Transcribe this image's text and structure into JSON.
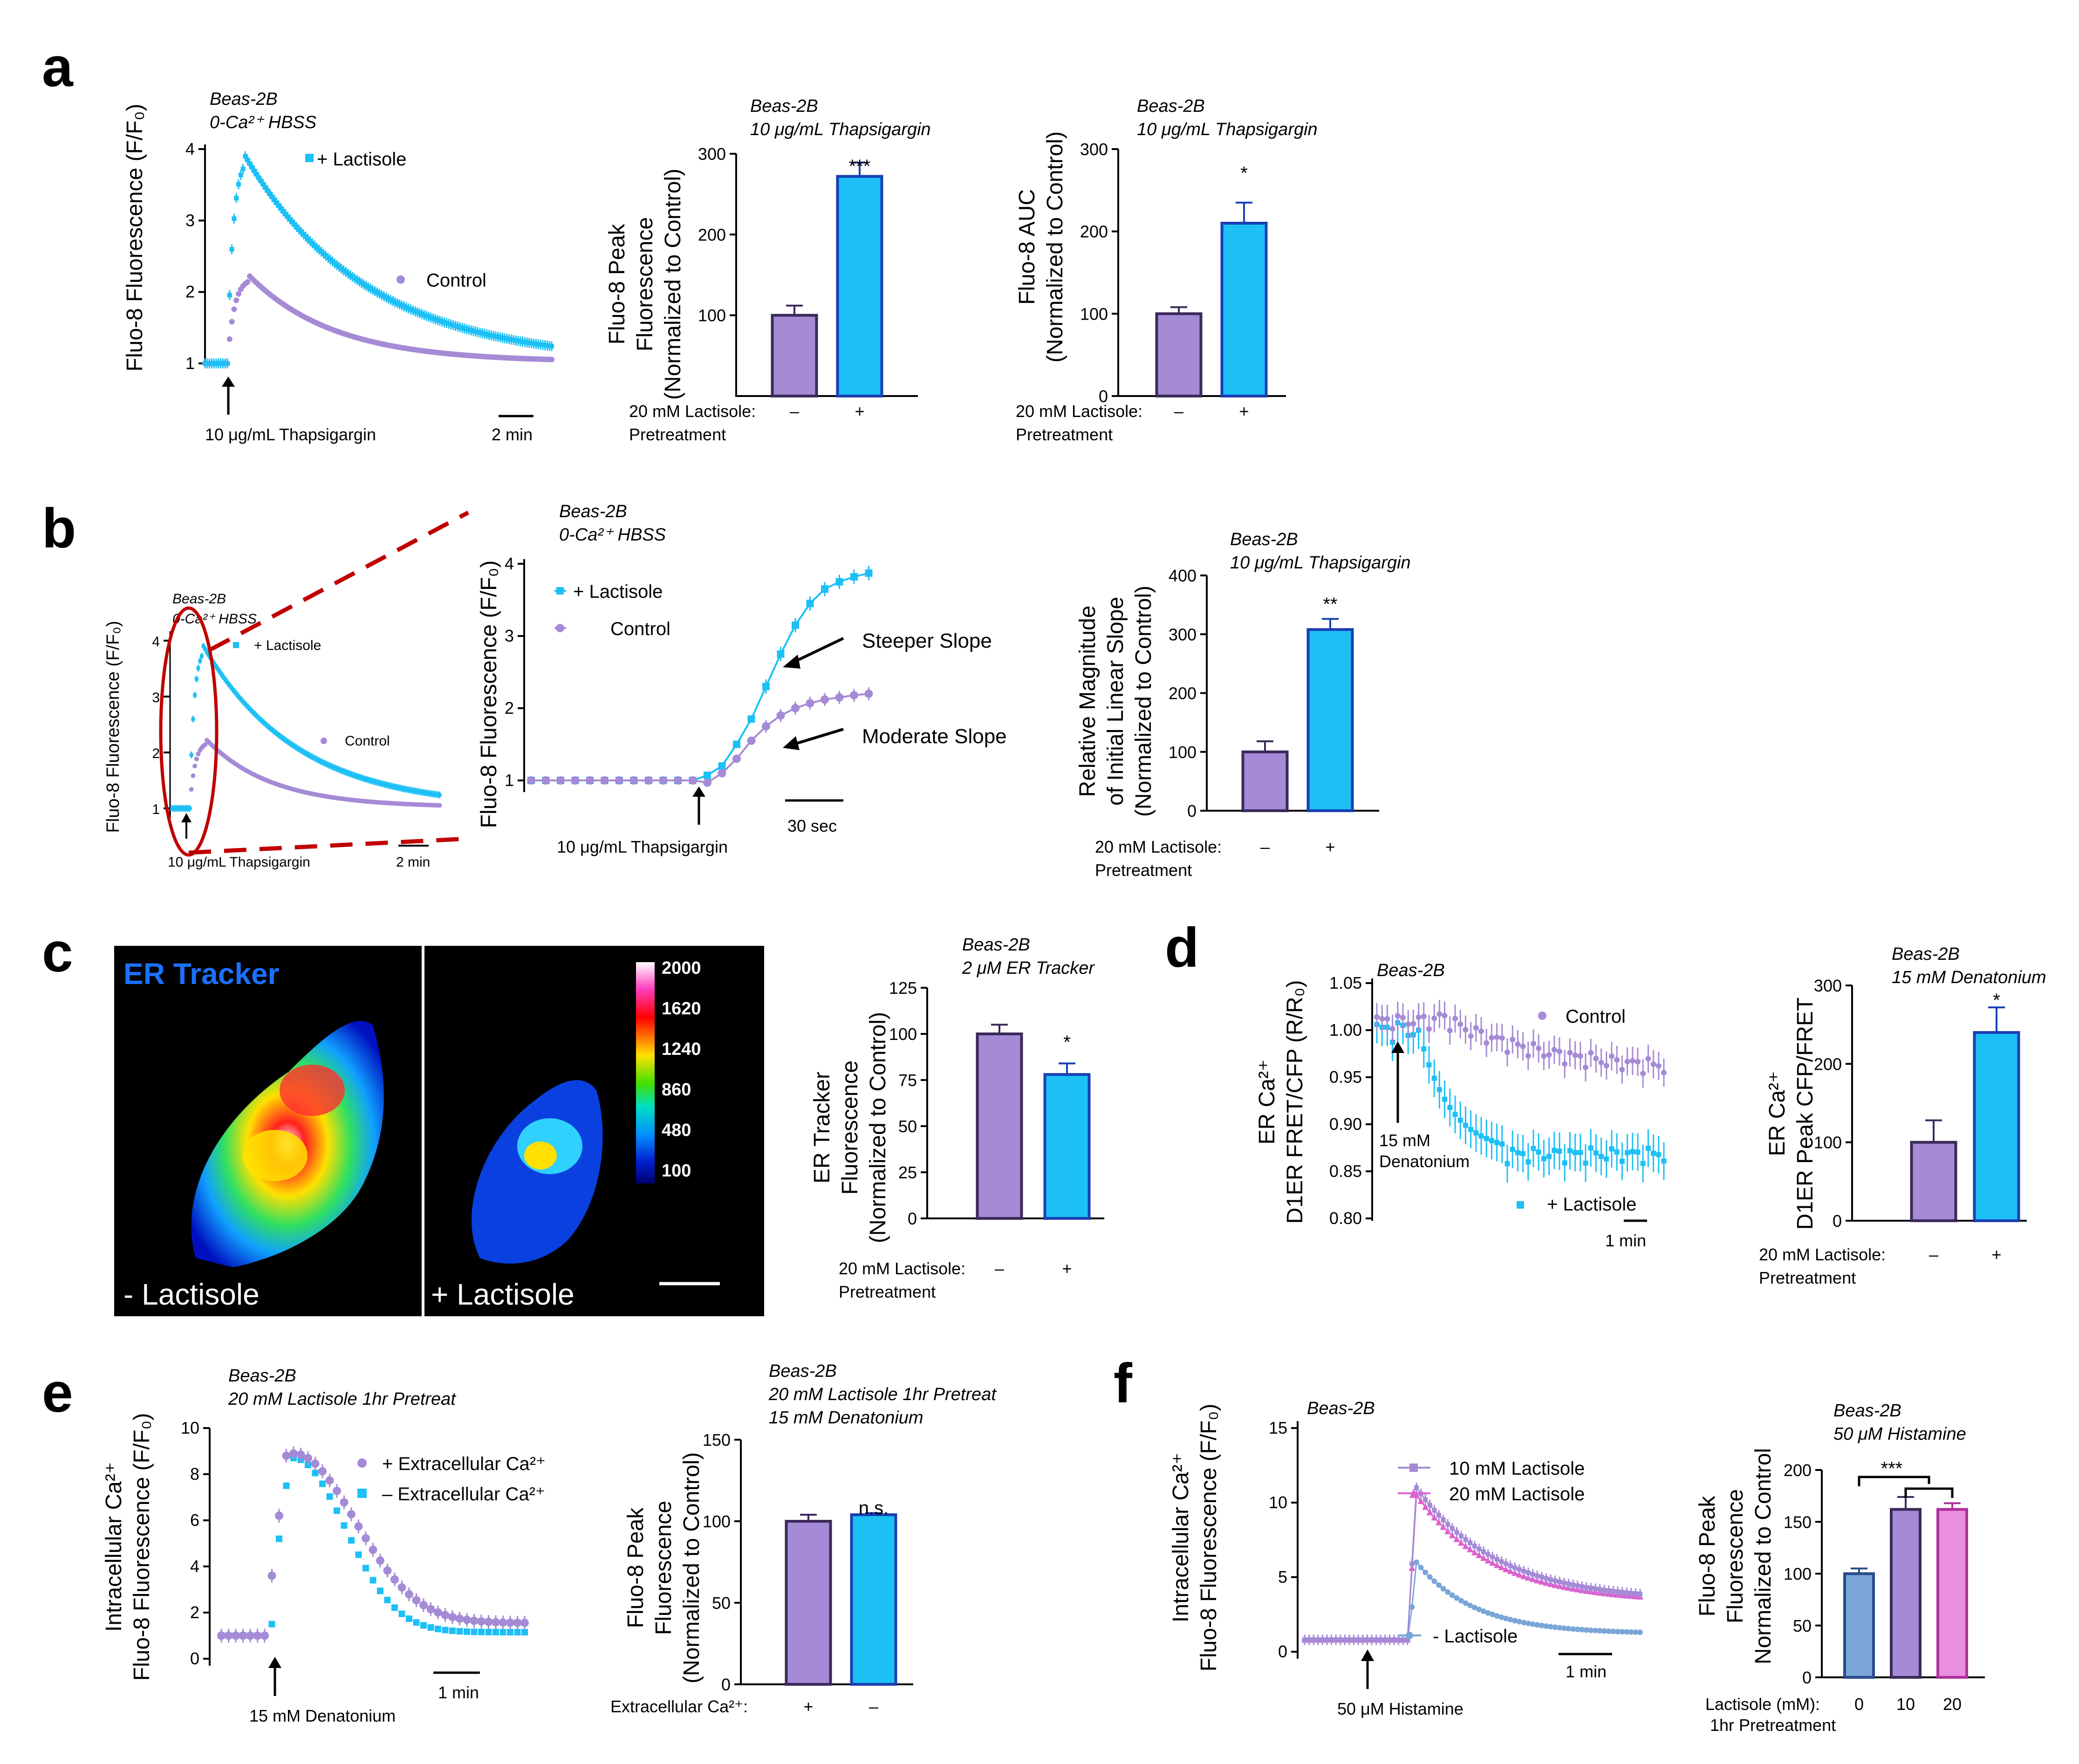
{
  "colors": {
    "purple": "#a58ad6",
    "cyan": "#1cc0f5",
    "blue_edge": "#1a3fb5",
    "steel": "#7aa6d8",
    "magenta": "#e060d0",
    "red": "#c00000",
    "dark_purple": "#3b2a5a"
  },
  "panels": {
    "a": "a",
    "b": "b",
    "c": "c",
    "d": "d",
    "e": "e",
    "f": "f"
  },
  "a": {
    "trace": {
      "t1": "Beas-2B",
      "t2": "0-Ca²⁺ HBSS",
      "ylabel": "Fluo-8 Fluorescence (F/F₀)",
      "legend_lact": "+ Lactisole",
      "legend_ctrl": "Control",
      "arrow_label": "10 μg/mL Thapsigargin",
      "scale": "2 min",
      "yticks": [
        "1",
        "2",
        "3",
        "4"
      ]
    },
    "bar1": {
      "t1": "Beas-2B",
      "t2": "10 μg/mL Thapsigargin",
      "ylabel1": "Fluo-8 Peak",
      "ylabel2": "Fluorescence",
      "ylabel3": "(Normalized to Control)",
      "yticks": [
        "100",
        "200",
        "300"
      ],
      "sig": "***",
      "row1": "20 mM Lactisole:",
      "row2": "Pretreatment",
      "minus": "–",
      "plus": "+"
    },
    "bar2": {
      "t1": "Beas-2B",
      "t2": "10 μg/mL Thapsigargin",
      "ylabel1": "Fluo-8 AUC",
      "ylabel2": "(Normalized to Control)",
      "yticks": [
        "0",
        "100",
        "200",
        "300"
      ],
      "sig": "*",
      "row1": "20 mM Lactisole:",
      "row2": "Pretreatment",
      "minus": "–",
      "plus": "+"
    }
  },
  "b": {
    "inset": {
      "t1": "Beas-2B",
      "t2": "0-Ca²⁺ HBSS",
      "ylabel": "Fluo-8 Fluorescence (F/F₀)",
      "legend_lact": "+ Lactisole",
      "legend_ctrl": "Control",
      "arrow_label": "10 μg/mL Thapsigargin",
      "scale": "2 min",
      "yticks": [
        "1",
        "2",
        "3",
        "4"
      ]
    },
    "zoom": {
      "t1": "Beas-2B",
      "t2": "0-Ca²⁺ HBSS",
      "ylabel": "Fluo-8 Fluorescence (F/F₀)",
      "legend_lact": "+ Lactisole",
      "legend_ctrl": "Control",
      "steep": "Steeper Slope",
      "moderate": "Moderate Slope",
      "scale": "30 sec",
      "arrow_label": "10 μg/mL Thapsigargin",
      "yticks": [
        "1",
        "2",
        "3",
        "4"
      ]
    },
    "bar": {
      "t1": "Beas-2B",
      "t2": "10 μg/mL Thapsigargin",
      "ylabel1": "Relative Magnitude",
      "ylabel2": "of Initial Linear Slope",
      "ylabel3": "(Normalized to Control)",
      "yticks": [
        "0",
        "100",
        "200",
        "300",
        "400"
      ],
      "sig": "**",
      "row1": "20 mM Lactisole:",
      "row2": "Pretreatment",
      "minus": "–",
      "plus": "+"
    }
  },
  "c": {
    "img_title": "ER Tracker",
    "left_label": "- Lactisole",
    "right_label": "+ Lactisole",
    "colorbar": [
      "2000",
      "1620",
      "1240",
      "860",
      "480",
      "100"
    ],
    "bar": {
      "t1": "Beas-2B",
      "t2": "2 μM ER Tracker",
      "ylabel1": "ER Tracker",
      "ylabel2": "Fluorescence",
      "ylabel3": "(Normalized to Control)",
      "yticks": [
        "0",
        "25",
        "50",
        "75",
        "100",
        "125"
      ],
      "sig": "*",
      "row1": "20 mM Lactisole:",
      "row2": "Pretreatment",
      "minus": "–",
      "plus": "+"
    }
  },
  "d": {
    "trace": {
      "t1": "Beas-2B",
      "ylabel1": "ER Ca²⁺",
      "ylabel2": "D1ER FRET/CFP (R/R₀)",
      "legend_ctrl": "Control",
      "legend_lact": "+ Lactisole",
      "arrow1": "15 mM",
      "arrow2": "Denatonium",
      "scale": "1 min",
      "yticks": [
        "0.80",
        "0.85",
        "0.90",
        "0.95",
        "1.00",
        "1.05"
      ]
    },
    "bar": {
      "t1": "Beas-2B",
      "t2": "15 mM Denatonium",
      "ylabel1": "ER Ca²⁺",
      "ylabel2": "D1ER Peak CFP/FRET",
      "yticks": [
        "0",
        "100",
        "200",
        "300"
      ],
      "sig": "*",
      "row1": "20 mM Lactisole:",
      "row2": "Pretreatment",
      "minus": "–",
      "plus": "+"
    }
  },
  "e": {
    "trace": {
      "t1": "Beas-2B",
      "t2": "20 mM Lactisole 1hr Pretreat",
      "ylabel1": "Intracellular Ca²⁺",
      "ylabel2": "Fluo-8 Fluorescence (F/F₀)",
      "legend_plus": "+ Extracellular Ca²⁺",
      "legend_minus": "– Extracellular Ca²⁺",
      "arrow_label": "15 mM Denatonium",
      "scale": "1 min",
      "yticks": [
        "0",
        "2",
        "4",
        "6",
        "8",
        "10"
      ]
    },
    "bar": {
      "t1": "Beas-2B",
      "t2": "20 mM Lactisole 1hr Pretreat",
      "t3": "15 mM Denatonium",
      "ylabel1": "Fluo-8 Peak",
      "ylabel2": "Fluorescence",
      "ylabel3": "(Normalized to Control)",
      "yticks": [
        "0",
        "50",
        "100",
        "150"
      ],
      "sig": "n.s.",
      "row1": "Extracellular Ca²⁺:",
      "plus": "+",
      "minus": "–"
    }
  },
  "f": {
    "trace": {
      "t1": "Beas-2B",
      "ylabel1": "Intracellular Ca²⁺",
      "ylabel2": "Fluo-8 Fluorescence (F/F₀)",
      "legend_10": "10 mM Lactisole",
      "legend_20": "20 mM Lactisole",
      "legend_minus": "- Lactisole",
      "arrow_label": "50 μM Histamine",
      "scale": "1 min",
      "yticks": [
        "0",
        "5",
        "10",
        "15"
      ]
    },
    "bar": {
      "t1": "Beas-2B",
      "t2": "50 μM Histamine",
      "ylabel1": "Fluo-8 Peak",
      "ylabel2": "Fluorescence",
      "ylabel3": "Normalized to Control",
      "yticks": [
        "0",
        "50",
        "100",
        "150",
        "200"
      ],
      "sig": "***",
      "row1": "Lactisole (mM):",
      "row2": "1hr Pretreatment",
      "x0": "0",
      "x10": "10",
      "x20": "20"
    }
  },
  "chart_data": [
    {
      "panel": "a",
      "type": "line",
      "series": [
        {
          "name": "+ Lactisole",
          "peak": 3.9
        },
        {
          "name": "Control",
          "peak": 2.2
        }
      ],
      "ylim": [
        1,
        4
      ]
    },
    {
      "panel": "a",
      "type": "bar",
      "categories": [
        "–",
        "+"
      ],
      "values": [
        100,
        272
      ],
      "errors": [
        12,
        17
      ],
      "ylim": [
        0,
        300
      ]
    },
    {
      "panel": "a",
      "type": "bar",
      "categories": [
        "–",
        "+"
      ],
      "values": [
        100,
        210
      ],
      "errors": [
        8,
        25
      ],
      "ylim": [
        0,
        300
      ]
    },
    {
      "panel": "b",
      "type": "line",
      "series": [
        {
          "name": "+ Lactisole",
          "values": [
            1,
            1,
            1,
            1,
            1,
            1,
            1,
            1,
            1,
            1,
            1,
            1,
            1.07,
            1.2,
            1.5,
            1.85,
            2.3,
            2.75,
            3.15,
            3.45,
            3.65,
            3.75,
            3.82,
            3.87
          ]
        },
        {
          "name": "Control",
          "values": [
            1,
            1,
            1,
            1,
            1,
            1,
            1,
            1,
            1,
            1,
            1,
            1,
            0.97,
            1.1,
            1.3,
            1.55,
            1.75,
            1.9,
            2.0,
            2.07,
            2.12,
            2.15,
            2.18,
            2.2
          ]
        }
      ],
      "ylim": [
        1,
        4
      ]
    },
    {
      "panel": "b",
      "type": "bar",
      "categories": [
        "–",
        "+"
      ],
      "values": [
        100,
        308
      ],
      "errors": [
        18,
        18
      ],
      "ylim": [
        0,
        400
      ]
    },
    {
      "panel": "c",
      "type": "bar",
      "categories": [
        "–",
        "+"
      ],
      "values": [
        100,
        78
      ],
      "errors": [
        5,
        6
      ],
      "ylim": [
        0,
        125
      ]
    },
    {
      "panel": "d",
      "type": "line",
      "series": [
        {
          "name": "Control",
          "end": 0.955
        },
        {
          "name": "+ Lactisole",
          "end": 0.865
        }
      ],
      "ylim": [
        0.8,
        1.05
      ]
    },
    {
      "panel": "d",
      "type": "bar",
      "categories": [
        "–",
        "+"
      ],
      "values": [
        100,
        240
      ],
      "errors": [
        28,
        32
      ],
      "ylim": [
        0,
        300
      ]
    },
    {
      "panel": "e",
      "type": "line",
      "series": [
        {
          "name": "+ Extracellular Ca²⁺",
          "peak": 8.9
        },
        {
          "name": "– Extracellular Ca²⁺",
          "peak": 8.7
        }
      ],
      "ylim": [
        0,
        10
      ]
    },
    {
      "panel": "e",
      "type": "bar",
      "categories": [
        "+",
        "–"
      ],
      "values": [
        100,
        104
      ],
      "errors": [
        4,
        1
      ],
      "ylim": [
        0,
        150
      ]
    },
    {
      "panel": "f",
      "type": "line",
      "series": [
        {
          "name": "10 mM Lactisole",
          "peak": 11
        },
        {
          "name": "20 mM Lactisole",
          "peak": 10.5
        },
        {
          "name": "- Lactisole",
          "peak": 6
        }
      ],
      "ylim": [
        0,
        15
      ]
    },
    {
      "panel": "f",
      "type": "bar",
      "categories": [
        "0",
        "10",
        "20"
      ],
      "values": [
        100,
        162,
        162
      ],
      "errors": [
        5,
        12,
        6
      ],
      "ylim": [
        0,
        200
      ]
    }
  ]
}
